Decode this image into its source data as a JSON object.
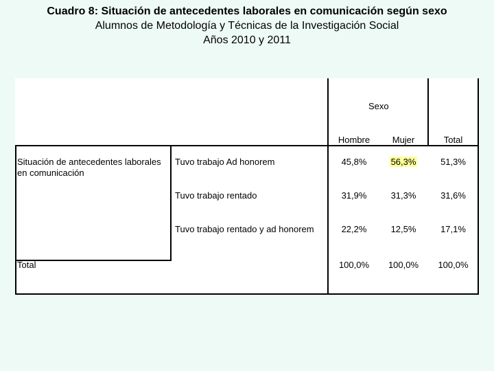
{
  "title": {
    "line1": "Cuadro 8: Situación de antecedentes laborales en comunicación según sexo",
    "line2": "Alumnos de Metodología y Técnicas de la Investigación Social",
    "line3": "Años 2010 y 2011"
  },
  "table": {
    "group_header": "Sexo",
    "columns": [
      "Hombre",
      "Mujer",
      "Total"
    ],
    "row_group_label": "Situación de antecedentes laborales en comunicación",
    "rows": [
      {
        "label": "Tuvo trabajo Ad honorem",
        "values": [
          "45,8%",
          "56,3%",
          "51,3%"
        ]
      },
      {
        "label": "Tuvo trabajo rentado",
        "values": [
          "31,9%",
          "31,3%",
          "31,6%"
        ]
      },
      {
        "label": "Tuvo trabajo rentado y ad honorem",
        "values": [
          "22,2%",
          "12,5%",
          "17,1%"
        ]
      }
    ],
    "total_row": {
      "label": "Total",
      "values": [
        "100,0%",
        "100,0%",
        "100,0%"
      ]
    },
    "highlight_color": "#ffff99"
  }
}
